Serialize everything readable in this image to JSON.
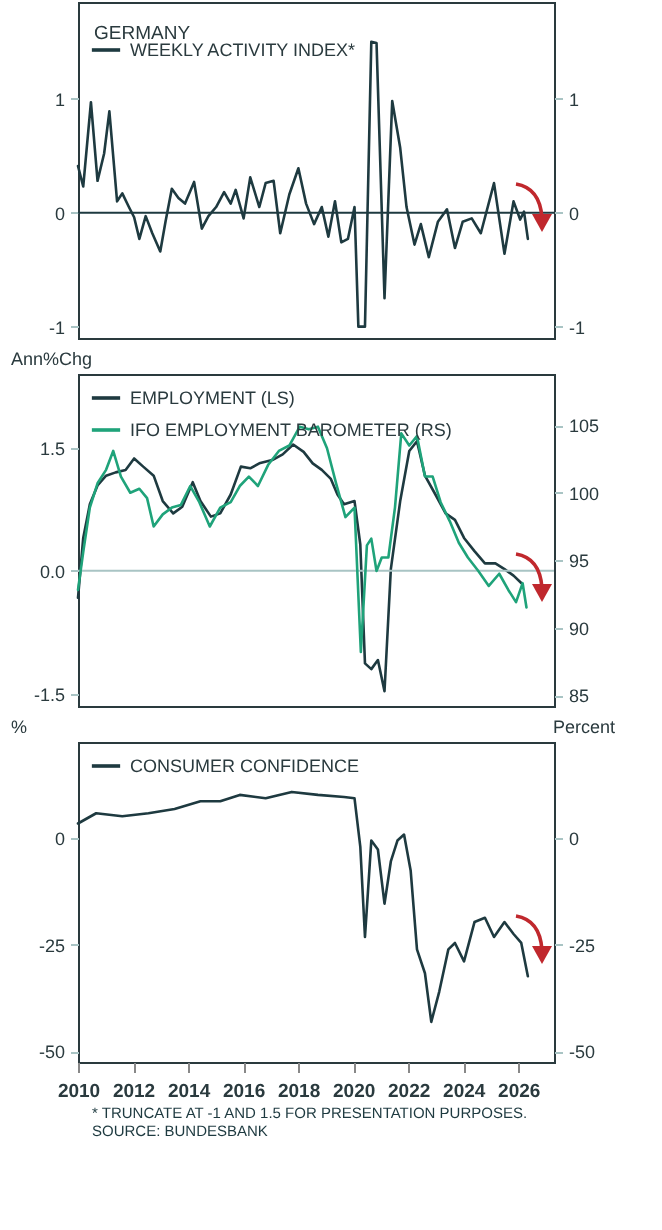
{
  "chart_data": [
    {
      "type": "line",
      "title": "GERMANY",
      "xlim": [
        2010,
        2027.3
      ],
      "xticks": [
        2010,
        2012,
        2014,
        2016,
        2018,
        2020,
        2022,
        2024,
        2026
      ],
      "ylim": [
        -1.1,
        1.85
      ],
      "yticks": [
        -1,
        0,
        1
      ],
      "y2lim": [
        -1.1,
        1.85
      ],
      "y2ticks": [
        -1,
        0,
        1
      ],
      "tick_labels": "y",
      "legend": "top left",
      "ref_lines": [
        {
          "axis": "y",
          "value": 0,
          "color": "#1e3a40"
        }
      ],
      "series": [
        {
          "name": "WEEKLY ACTIVITY INDEX*",
          "color": "#1e3a40",
          "x": [
            2010.0,
            2010.19,
            2010.47,
            2010.71,
            2010.95,
            2011.14,
            2011.42,
            2011.61,
            2011.85,
            2012.04,
            2012.23,
            2012.46,
            2012.7,
            2012.99,
            2013.18,
            2013.41,
            2013.65,
            2013.89,
            2014.22,
            2014.5,
            2014.74,
            2015.02,
            2015.31,
            2015.55,
            2015.73,
            2016.02,
            2016.26,
            2016.59,
            2016.82,
            2017.11,
            2017.35,
            2017.68,
            2018.01,
            2018.29,
            2018.58,
            2018.86,
            2019.1,
            2019.34,
            2019.57,
            2019.81,
            2020.05,
            2020.19,
            2020.43,
            2020.66,
            2020.85,
            2021.14,
            2021.42,
            2021.71,
            2021.94,
            2022.23,
            2022.46,
            2022.75,
            2023.08,
            2023.41,
            2023.7,
            2023.98,
            2024.31,
            2024.64,
            2025.12,
            2025.5,
            2025.83,
            2026.07,
            2026.21,
            2026.35
          ],
          "values": [
            0.41,
            0.23,
            0.97,
            0.28,
            0.52,
            0.89,
            0.1,
            0.17,
            0.05,
            -0.04,
            -0.23,
            -0.03,
            -0.18,
            -0.34,
            -0.08,
            0.21,
            0.13,
            0.08,
            0.27,
            -0.14,
            -0.03,
            0.05,
            0.18,
            0.08,
            0.2,
            -0.05,
            0.31,
            0.05,
            0.26,
            0.28,
            -0.18,
            0.16,
            0.39,
            0.08,
            -0.1,
            0.05,
            -0.21,
            0.1,
            -0.26,
            -0.23,
            0.05,
            -1.0,
            -1.0,
            1.5,
            1.49,
            -0.75,
            0.98,
            0.57,
            0.05,
            -0.28,
            -0.1,
            -0.39,
            -0.08,
            0.03,
            -0.31,
            -0.08,
            -0.05,
            -0.18,
            0.26,
            -0.36,
            0.1,
            -0.06,
            0.01,
            -0.23
          ]
        }
      ]
    },
    {
      "type": "line",
      "ylabel": "Ann%Chg",
      "xlim": [
        2010,
        2027.3
      ],
      "xticks": [
        2010,
        2012,
        2014,
        2016,
        2018,
        2020,
        2022,
        2024,
        2026
      ],
      "ylim": [
        -1.65,
        2.4
      ],
      "yticks": [
        -1.5,
        {
          "value": 0,
          "label": "0.0"
        },
        1.5
      ],
      "y2lim": [
        84.2,
        108.8
      ],
      "y2ticks": [
        85,
        90,
        95,
        100,
        105
      ],
      "tick_labels": "y",
      "legend": "top left",
      "ref_lines": [
        {
          "axis": "y",
          "value": 0,
          "color": "#a9c4c4"
        }
      ],
      "series": [
        {
          "name": "EMPLOYMENT (LS)",
          "color": "#1e3a40",
          "x": [
            2010.0,
            2010.19,
            2010.43,
            2010.71,
            2011.02,
            2011.37,
            2011.73,
            2012.04,
            2012.37,
            2012.75,
            2013.08,
            2013.46,
            2013.79,
            2014.17,
            2014.45,
            2014.83,
            2015.17,
            2015.55,
            2015.92,
            2016.26,
            2016.59,
            2017.06,
            2017.44,
            2017.82,
            2018.2,
            2018.53,
            2018.86,
            2019.19,
            2019.43,
            2019.67,
            2020.05,
            2020.26,
            2020.43,
            2020.66,
            2020.9,
            2021.14,
            2021.37,
            2021.71,
            2022.04,
            2022.32,
            2022.61,
            2022.99,
            2023.36,
            2023.7,
            2024.03,
            2024.41,
            2024.79,
            2025.17,
            2025.5,
            2025.83,
            2026.11
          ],
          "values": [
            -0.33,
            0.4,
            0.81,
            1.04,
            1.16,
            1.2,
            1.23,
            1.37,
            1.27,
            1.16,
            0.85,
            0.7,
            0.78,
            1.08,
            0.85,
            0.66,
            0.7,
            0.93,
            1.27,
            1.25,
            1.31,
            1.35,
            1.42,
            1.54,
            1.45,
            1.31,
            1.23,
            1.12,
            0.93,
            0.81,
            0.85,
            0.32,
            -1.13,
            -1.2,
            -1.09,
            -1.47,
            0.02,
            0.85,
            1.46,
            1.58,
            1.16,
            0.93,
            0.7,
            0.62,
            0.4,
            0.24,
            0.09,
            0.09,
            0.02,
            -0.06,
            -0.15
          ]
        },
        {
          "name": "IFO EMPLOYMENT BAROMETER (RS)",
          "color": "#1fa37a",
          "axis": "y2",
          "x": [
            2010.0,
            2010.19,
            2010.43,
            2010.71,
            2011.02,
            2011.28,
            2011.56,
            2011.9,
            2012.23,
            2012.51,
            2012.75,
            2013.08,
            2013.41,
            2013.74,
            2014.08,
            2014.41,
            2014.79,
            2015.17,
            2015.55,
            2015.88,
            2016.21,
            2016.54,
            2016.92,
            2017.3,
            2017.68,
            2018.06,
            2018.39,
            2018.72,
            2019.05,
            2019.38,
            2019.72,
            2020.05,
            2020.28,
            2020.5,
            2020.66,
            2020.85,
            2021.04,
            2021.28,
            2021.52,
            2021.75,
            2022.04,
            2022.32,
            2022.61,
            2022.89,
            2023.18,
            2023.51,
            2023.84,
            2024.17,
            2024.55,
            2024.93,
            2025.31,
            2025.64,
            2025.92,
            2026.16,
            2026.3
          ],
          "values": [
            92.8,
            95.6,
            98.9,
            100.7,
            101.7,
            103.1,
            101.2,
            100.0,
            100.3,
            99.6,
            97.5,
            98.4,
            98.9,
            99.1,
            100.5,
            99.3,
            97.5,
            98.9,
            99.3,
            100.5,
            101.2,
            100.5,
            102.1,
            103.1,
            103.5,
            104.9,
            104.7,
            104.9,
            103.3,
            100.7,
            98.2,
            98.9,
            88.2,
            96.1,
            96.6,
            94.2,
            95.2,
            95.2,
            98.9,
            104.4,
            103.5,
            104.2,
            101.2,
            101.2,
            99.3,
            97.9,
            96.3,
            95.2,
            94.2,
            93.1,
            94.0,
            92.8,
            91.9,
            93.3,
            91.5
          ]
        }
      ]
    },
    {
      "type": "line",
      "ylabel": "%",
      "y2label": "Percent",
      "xlim": [
        2010,
        2027.3
      ],
      "xticks": [
        2010,
        2012,
        2014,
        2016,
        2018,
        2020,
        2022,
        2024,
        2026
      ],
      "ylim": [
        -52.5,
        22.5
      ],
      "yticks": [
        -50,
        -25,
        0
      ],
      "y2lim": [
        -52.5,
        22.5
      ],
      "y2ticks": [
        -50,
        -25,
        0
      ],
      "legend": "top left",
      "annotations": [
        "* TRUNCATE AT -1 AND 1.5 FOR PRESENTATION PURPOSES.",
        "SOURCE: BUNDESBANK"
      ],
      "series": [
        {
          "name": "CONSUMER CONFIDENCE",
          "color": "#1e3a40",
          "x": [
            2010.0,
            2010.66,
            2011.61,
            2012.56,
            2013.51,
            2014.45,
            2015.17,
            2015.88,
            2016.82,
            2017.77,
            2018.72,
            2019.67,
            2020.05,
            2020.26,
            2020.43,
            2020.66,
            2020.9,
            2021.14,
            2021.37,
            2021.61,
            2021.85,
            2022.09,
            2022.32,
            2022.61,
            2022.84,
            2023.13,
            2023.46,
            2023.7,
            2024.03,
            2024.41,
            2024.79,
            2025.12,
            2025.5,
            2025.83,
            2026.11,
            2026.35
          ],
          "values": [
            3.4,
            5.8,
            5.1,
            5.8,
            6.8,
            8.6,
            8.6,
            10.1,
            9.3,
            10.8,
            10.1,
            9.6,
            9.3,
            -2.0,
            -23.2,
            -0.6,
            -2.7,
            -15.4,
            -5.5,
            -0.6,
            0.8,
            -7.6,
            -26.1,
            -31.7,
            -43.1,
            -36.0,
            -26.1,
            -24.6,
            -28.9,
            -19.7,
            -18.7,
            -23.2,
            -19.7,
            -22.5,
            -24.6,
            -32.4
          ]
        }
      ]
    }
  ]
}
